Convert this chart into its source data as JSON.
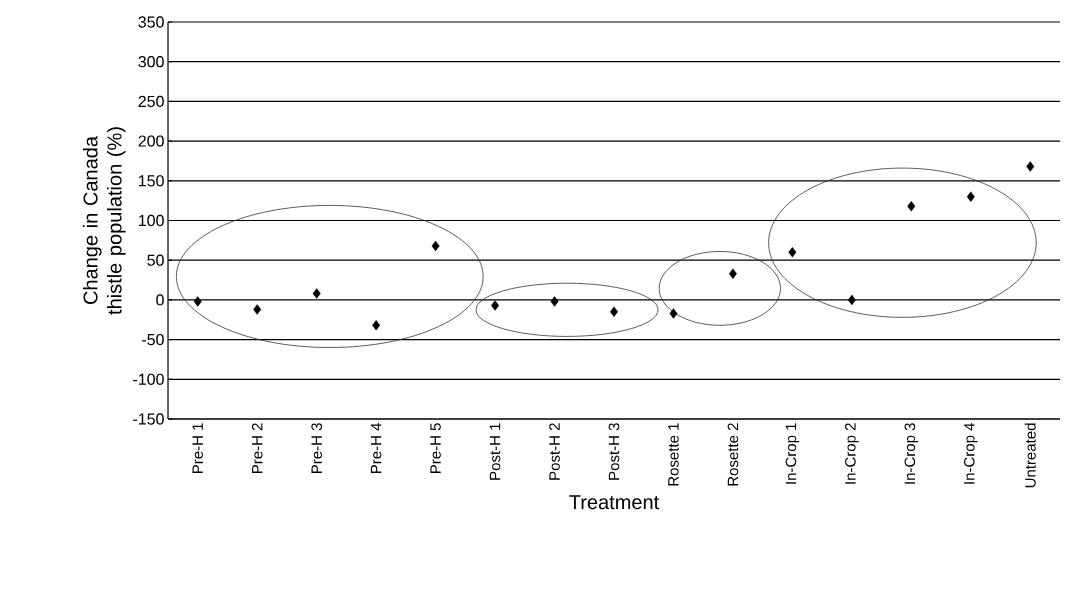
{
  "chart_data": {
    "type": "scatter",
    "xlabel": "Treatment",
    "ylabel": "Change in Canada thistle population (%)",
    "categories": [
      "Pre-H 1",
      "Pre-H 2",
      "Pre-H 3",
      "Pre-H 4",
      "Pre-H 5",
      "Post-H 1",
      "Post-H 2",
      "Post-H 3",
      "Rosette 1",
      "Rosette 2",
      "In-Crop 1",
      "In-Crop 2",
      "In-Crop 3",
      "In-Crop 4",
      "Untreated"
    ],
    "values": [
      -2,
      -12,
      8,
      -32,
      68,
      -7,
      -2,
      -15,
      -17,
      33,
      60,
      0,
      118,
      130,
      168
    ],
    "color": "#000000",
    "marker": "diamond",
    "ylim": [
      -150,
      350
    ],
    "yticks": [
      -150,
      -100,
      -50,
      0,
      50,
      100,
      150,
      200,
      250,
      300,
      350
    ],
    "grid": "y"
  }
}
